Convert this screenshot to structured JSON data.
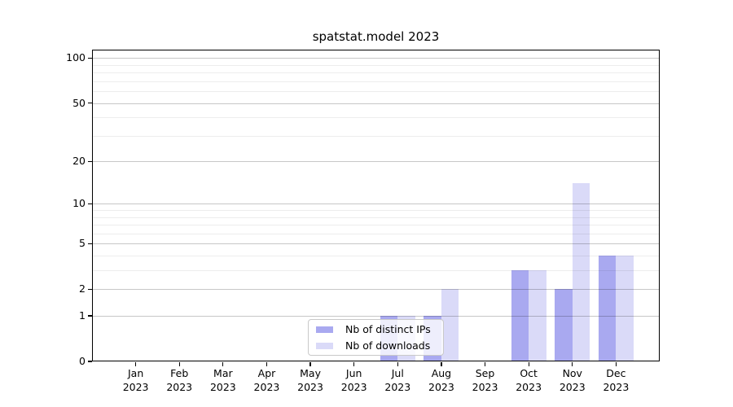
{
  "title": "spatstat.model 2023",
  "chart_data": {
    "type": "bar",
    "title": "spatstat.model 2023",
    "x_months": [
      "Jan",
      "Feb",
      "Mar",
      "Apr",
      "May",
      "Jun",
      "Jul",
      "Aug",
      "Sep",
      "Oct",
      "Nov",
      "Dec"
    ],
    "x_year": "2023",
    "series": [
      {
        "name": "Nb of distinct IPs",
        "color": "#a9a9f0",
        "values": [
          0,
          0,
          0,
          0,
          0,
          0,
          1,
          1,
          0,
          3,
          2,
          4
        ]
      },
      {
        "name": "Nb of downloads",
        "color": "#dadaf8",
        "values": [
          0,
          0,
          0,
          0,
          0,
          0,
          1,
          2,
          0,
          3,
          14,
          4
        ]
      }
    ],
    "yscale": "log1p",
    "ylim": [
      0,
      114
    ],
    "y_major_ticks": [
      0,
      1,
      2,
      5,
      10,
      20,
      50,
      100
    ],
    "y_minor_ticks": [
      3,
      4,
      6,
      7,
      8,
      9,
      30,
      40,
      60,
      70,
      80,
      90
    ],
    "grid": true,
    "legend_position": "lower center"
  },
  "legend": {
    "items": [
      {
        "label": "Nb of distinct IPs",
        "color": "#a9a9f0"
      },
      {
        "label": "Nb of downloads",
        "color": "#dadaf8"
      }
    ]
  },
  "colors": {
    "background": "#ffffff",
    "axis": "#000000",
    "grid_major": "rgba(0,0,0,0.22)",
    "grid_minor": "rgba(0,0,0,0.07)",
    "distinct_ips": "#a9a9f0",
    "downloads": "#dadaf8"
  }
}
